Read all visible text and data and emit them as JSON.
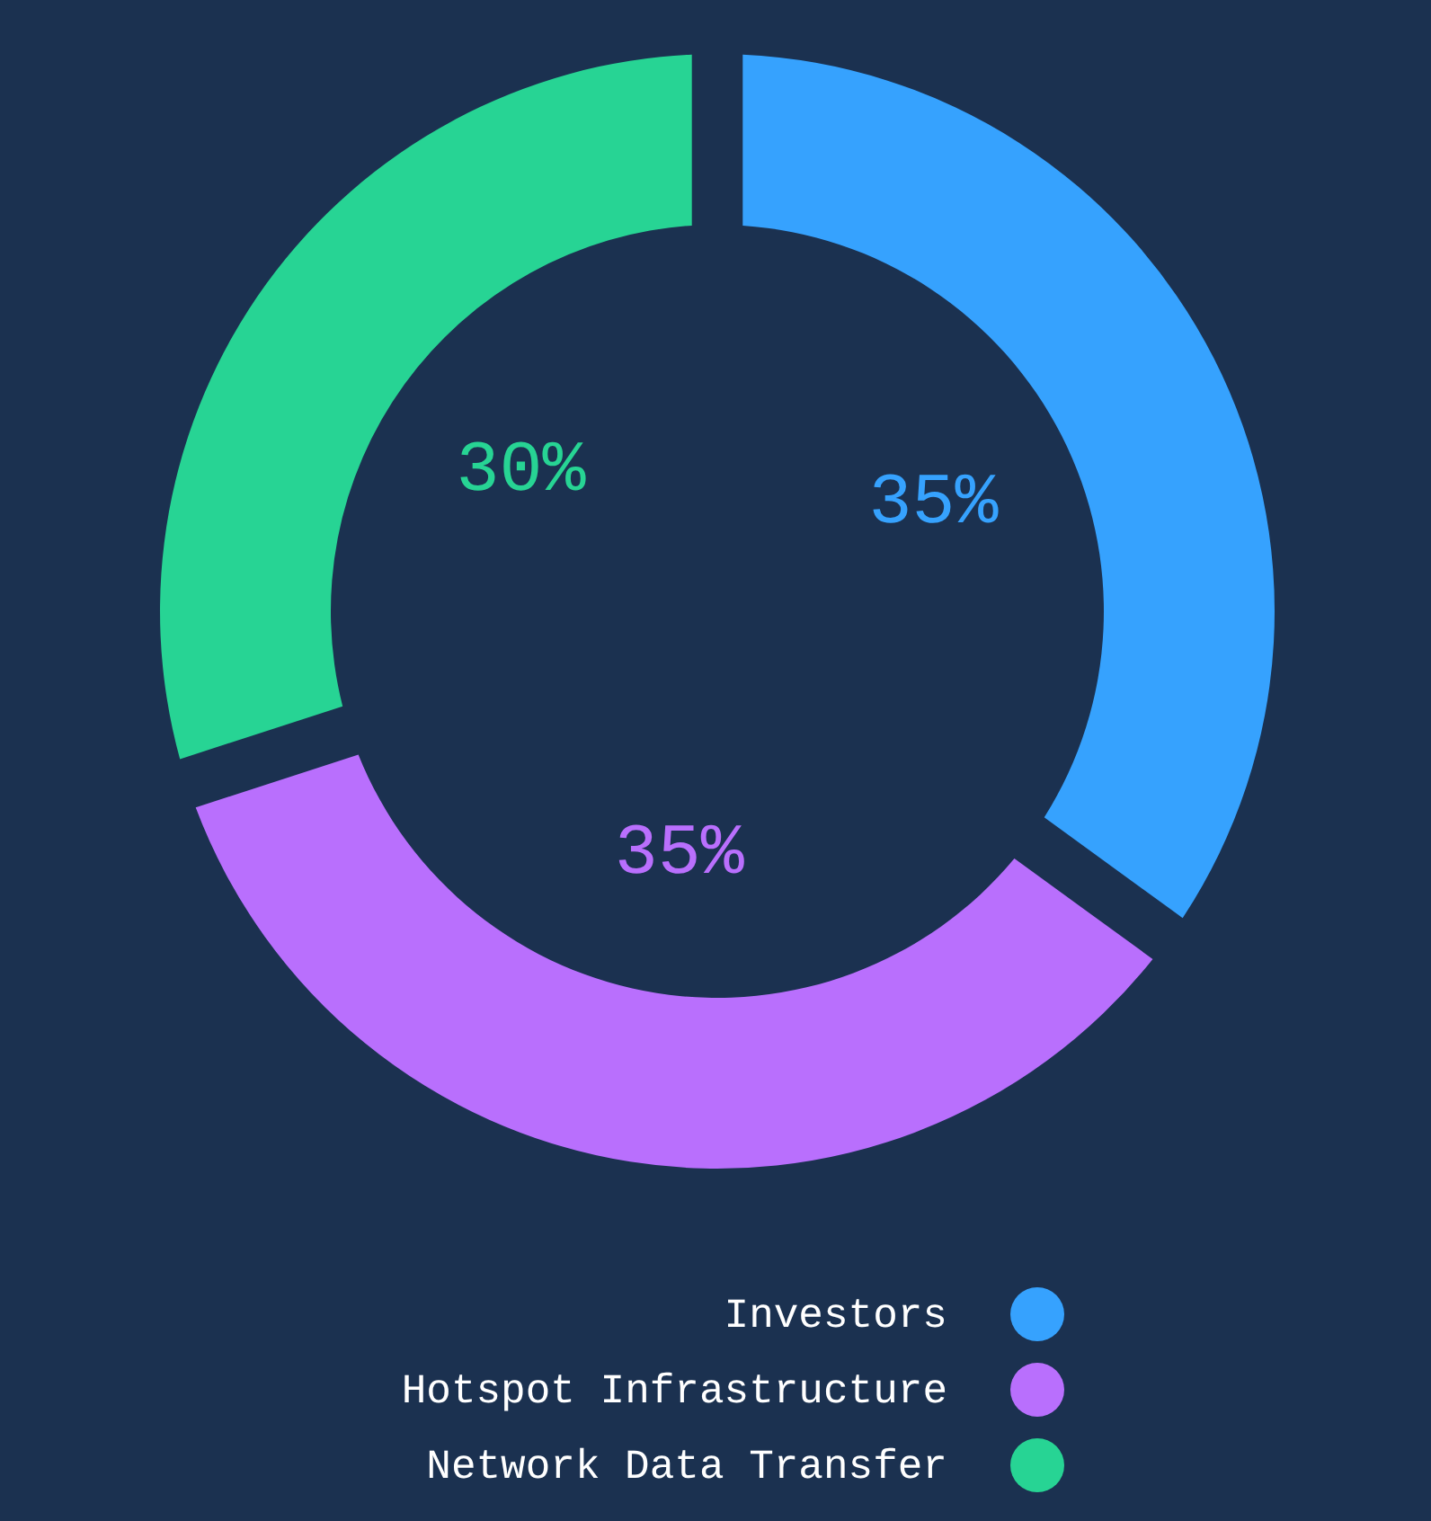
{
  "chart_data": {
    "type": "donut",
    "categories": [
      "Investors",
      "Hotspot Infrastructure",
      "Network Data Transfer"
    ],
    "values": [
      35,
      35,
      30
    ],
    "colors": [
      "#36a2fe",
      "#b96ffd",
      "#27d494"
    ],
    "value_labels": [
      "35%",
      "35%",
      "30%"
    ],
    "legend": "bottom"
  }
}
